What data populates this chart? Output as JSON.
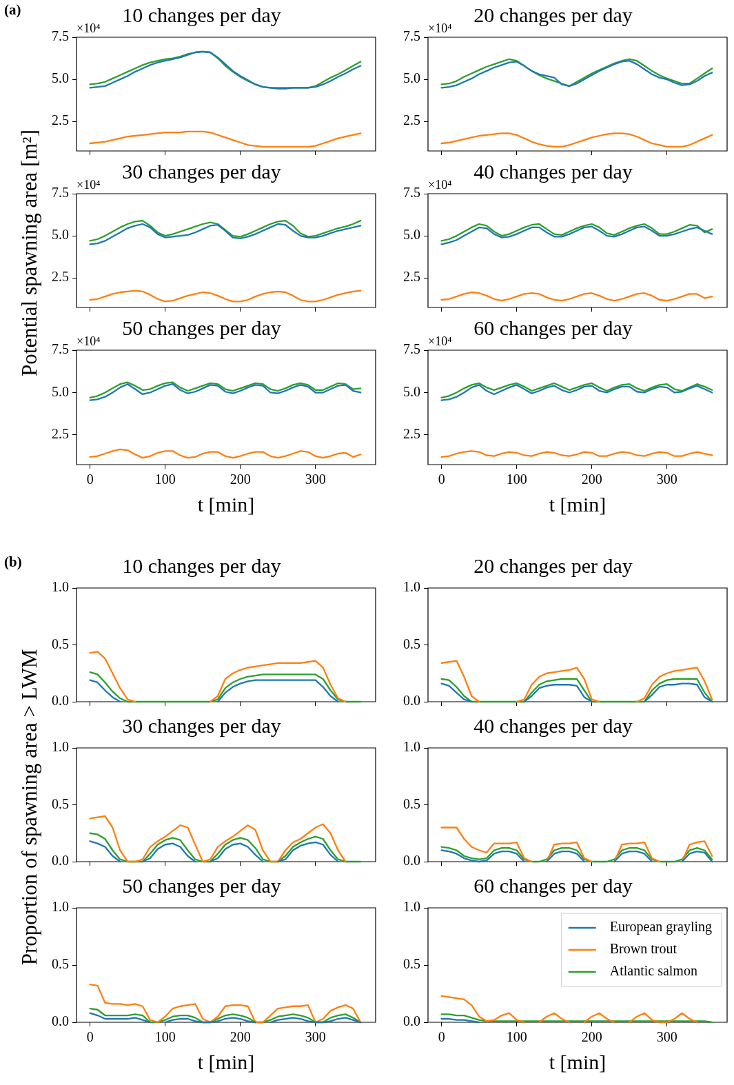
{
  "chart_data": [
    {
      "type": "line",
      "title": "10 changes per day",
      "annotations": [
        "(a)",
        "×10⁴"
      ],
      "tick_labels": "y",
      "x": [
        0,
        10,
        20,
        30,
        40,
        50,
        60,
        70,
        80,
        90,
        100,
        110,
        120,
        130,
        140,
        150,
        160,
        170,
        180,
        190,
        200,
        210,
        220,
        230,
        240,
        250,
        260,
        270,
        280,
        290,
        300,
        310,
        320,
        330,
        340,
        350,
        360
      ],
      "xlim": [
        -18,
        380
      ],
      "xticks": [
        0,
        100,
        200,
        300
      ],
      "ylim": [
        0.75,
        7.5
      ],
      "yticks": [
        2.5,
        {
          "value": 5,
          "label": "5.0"
        },
        7.5
      ],
      "series": [
        {
          "color": "#1f77b4",
          "values": [
            4.5,
            4.55,
            4.6,
            4.8,
            5,
            5.2,
            5.45,
            5.65,
            5.85,
            6,
            6.1,
            6.2,
            6.3,
            6.45,
            6.6,
            6.65,
            6.6,
            6.3,
            5.9,
            5.5,
            5.2,
            4.95,
            4.7,
            4.55,
            4.5,
            4.45,
            4.45,
            4.5,
            4.5,
            4.5,
            4.55,
            4.7,
            4.9,
            5.15,
            5.35,
            5.6,
            5.8
          ]
        },
        {
          "color": "#ff7f0e",
          "values": [
            1.2,
            1.25,
            1.3,
            1.4,
            1.5,
            1.6,
            1.65,
            1.7,
            1.75,
            1.8,
            1.85,
            1.85,
            1.85,
            1.9,
            1.9,
            1.9,
            1.85,
            1.7,
            1.55,
            1.4,
            1.25,
            1.1,
            1.05,
            1,
            1,
            1,
            1,
            1,
            1,
            1,
            1.05,
            1.2,
            1.35,
            1.5,
            1.6,
            1.7,
            1.8
          ]
        },
        {
          "color": "#2ca02c",
          "values": [
            4.7,
            4.75,
            4.85,
            5.05,
            5.25,
            5.45,
            5.65,
            5.85,
            6,
            6.1,
            6.2,
            6.25,
            6.35,
            6.5,
            6.6,
            6.65,
            6.6,
            6.25,
            5.8,
            5.45,
            5.15,
            4.9,
            4.7,
            4.55,
            4.5,
            4.5,
            4.5,
            4.5,
            4.5,
            4.5,
            4.6,
            4.85,
            5.1,
            5.3,
            5.55,
            5.8,
            6.05
          ]
        }
      ]
    },
    {
      "type": "line",
      "title": "20 changes per day",
      "annotations": [
        "×10⁴"
      ],
      "tick_labels": "y",
      "x": [
        0,
        10,
        20,
        30,
        40,
        50,
        60,
        70,
        80,
        90,
        100,
        110,
        120,
        130,
        140,
        150,
        160,
        170,
        180,
        190,
        200,
        210,
        220,
        230,
        240,
        250,
        260,
        270,
        280,
        290,
        300,
        310,
        320,
        330,
        340,
        350,
        360
      ],
      "xlim": [
        -18,
        380
      ],
      "xticks": [
        0,
        100,
        200,
        300
      ],
      "ylim": [
        0.75,
        7.5
      ],
      "yticks": [
        2.5,
        {
          "value": 5,
          "label": "5.0"
        },
        7.5
      ],
      "series": [
        {
          "color": "#1f77b4",
          "values": [
            4.5,
            4.55,
            4.65,
            4.85,
            5.05,
            5.3,
            5.5,
            5.7,
            5.85,
            6,
            6.05,
            5.8,
            5.5,
            5.3,
            5.2,
            5.1,
            4.7,
            4.6,
            4.75,
            5,
            5.25,
            5.5,
            5.7,
            5.9,
            6.05,
            6.1,
            5.9,
            5.6,
            5.3,
            5.1,
            5,
            4.8,
            4.65,
            4.7,
            4.9,
            5.2,
            5.4
          ]
        },
        {
          "color": "#ff7f0e",
          "values": [
            1.2,
            1.25,
            1.35,
            1.45,
            1.55,
            1.65,
            1.7,
            1.75,
            1.8,
            1.8,
            1.7,
            1.5,
            1.3,
            1.15,
            1.05,
            1,
            1,
            1.1,
            1.25,
            1.4,
            1.55,
            1.65,
            1.75,
            1.8,
            1.8,
            1.75,
            1.6,
            1.4,
            1.2,
            1.1,
            1,
            1,
            1,
            1.1,
            1.3,
            1.5,
            1.7
          ]
        },
        {
          "color": "#2ca02c",
          "values": [
            4.7,
            4.75,
            4.9,
            5.15,
            5.35,
            5.55,
            5.75,
            5.9,
            6.05,
            6.2,
            6.1,
            5.8,
            5.5,
            5.25,
            5.05,
            4.9,
            4.75,
            4.6,
            4.85,
            5.1,
            5.35,
            5.55,
            5.75,
            5.95,
            6.1,
            6.2,
            6.1,
            5.8,
            5.5,
            5.25,
            5.05,
            4.9,
            4.75,
            4.75,
            5.05,
            5.35,
            5.65
          ]
        }
      ]
    },
    {
      "type": "line",
      "title": "30 changes per day",
      "ylabel": "Potential spawning area [m²]",
      "annotations": [
        "×10⁴"
      ],
      "tick_labels": "y",
      "x": [
        0,
        10,
        20,
        30,
        40,
        50,
        60,
        70,
        80,
        90,
        100,
        110,
        120,
        130,
        140,
        150,
        160,
        170,
        180,
        190,
        200,
        210,
        220,
        230,
        240,
        250,
        260,
        270,
        280,
        290,
        300,
        310,
        320,
        330,
        340,
        350,
        360
      ],
      "xlim": [
        -18,
        380
      ],
      "xticks": [
        0,
        100,
        200,
        300
      ],
      "ylim": [
        0.75,
        7.5
      ],
      "yticks": [
        2.5,
        {
          "value": 5,
          "label": "5.0"
        },
        7.5
      ],
      "series": [
        {
          "color": "#1f77b4",
          "values": [
            4.5,
            4.55,
            4.7,
            4.95,
            5.2,
            5.45,
            5.6,
            5.7,
            5.5,
            5.1,
            4.9,
            4.95,
            5,
            5.05,
            5.2,
            5.4,
            5.6,
            5.65,
            5.3,
            4.9,
            4.85,
            4.95,
            5.1,
            5.3,
            5.5,
            5.7,
            5.65,
            5.3,
            5,
            4.9,
            4.9,
            5,
            5.15,
            5.3,
            5.4,
            5.5,
            5.6
          ]
        },
        {
          "color": "#ff7f0e",
          "values": [
            1.2,
            1.25,
            1.4,
            1.55,
            1.65,
            1.7,
            1.75,
            1.7,
            1.5,
            1.25,
            1.1,
            1.15,
            1.3,
            1.45,
            1.55,
            1.65,
            1.6,
            1.45,
            1.25,
            1.1,
            1.1,
            1.2,
            1.4,
            1.55,
            1.65,
            1.7,
            1.65,
            1.45,
            1.2,
            1.1,
            1.1,
            1.2,
            1.35,
            1.5,
            1.6,
            1.7,
            1.75
          ]
        },
        {
          "color": "#2ca02c",
          "values": [
            4.7,
            4.8,
            5,
            5.25,
            5.5,
            5.7,
            5.85,
            5.9,
            5.6,
            5.2,
            5,
            5.1,
            5.25,
            5.4,
            5.55,
            5.7,
            5.8,
            5.7,
            5.35,
            5,
            4.95,
            5.1,
            5.3,
            5.5,
            5.7,
            5.85,
            5.9,
            5.6,
            5.15,
            4.95,
            5,
            5.15,
            5.3,
            5.45,
            5.55,
            5.7,
            5.9
          ]
        }
      ]
    },
    {
      "type": "line",
      "title": "40 changes per day",
      "annotations": [
        "×10⁴"
      ],
      "tick_labels": "y",
      "x": [
        0,
        10,
        20,
        30,
        40,
        50,
        60,
        70,
        80,
        90,
        100,
        110,
        120,
        130,
        140,
        150,
        160,
        170,
        180,
        190,
        200,
        210,
        220,
        230,
        240,
        250,
        260,
        270,
        280,
        290,
        300,
        310,
        320,
        330,
        340,
        350,
        360
      ],
      "xlim": [
        -18,
        380
      ],
      "xticks": [
        0,
        100,
        200,
        300
      ],
      "ylim": [
        0.75,
        7.5
      ],
      "yticks": [
        2.5,
        {
          "value": 5,
          "label": "5.0"
        },
        7.5
      ],
      "series": [
        {
          "color": "#1f77b4",
          "values": [
            4.5,
            4.6,
            4.75,
            5,
            5.25,
            5.5,
            5.45,
            5.1,
            4.9,
            4.95,
            5.1,
            5.3,
            5.5,
            5.5,
            5.2,
            4.95,
            4.95,
            5.1,
            5.3,
            5.5,
            5.55,
            5.3,
            5,
            4.95,
            5.1,
            5.3,
            5.5,
            5.55,
            5.3,
            5,
            5,
            5.1,
            5.25,
            5.4,
            5.5,
            5.3,
            5.1
          ]
        },
        {
          "color": "#ff7f0e",
          "values": [
            1.2,
            1.25,
            1.4,
            1.55,
            1.65,
            1.6,
            1.45,
            1.25,
            1.15,
            1.25,
            1.4,
            1.55,
            1.6,
            1.55,
            1.35,
            1.2,
            1.15,
            1.25,
            1.4,
            1.55,
            1.6,
            1.45,
            1.25,
            1.15,
            1.25,
            1.4,
            1.55,
            1.6,
            1.45,
            1.2,
            1.15,
            1.25,
            1.4,
            1.55,
            1.55,
            1.3,
            1.4
          ]
        },
        {
          "color": "#2ca02c",
          "values": [
            4.7,
            4.8,
            5,
            5.25,
            5.5,
            5.7,
            5.6,
            5.25,
            5,
            5.1,
            5.3,
            5.5,
            5.65,
            5.7,
            5.4,
            5.1,
            5.05,
            5.25,
            5.45,
            5.6,
            5.7,
            5.5,
            5.15,
            5.05,
            5.25,
            5.45,
            5.6,
            5.7,
            5.45,
            5.1,
            5.1,
            5.25,
            5.45,
            5.65,
            5.6,
            5.2,
            5.4
          ]
        }
      ]
    },
    {
      "type": "line",
      "title": "50 changes per day",
      "xlabel": "t [min]",
      "annotations": [
        "×10⁴"
      ],
      "x": [
        0,
        10,
        20,
        30,
        40,
        50,
        60,
        70,
        80,
        90,
        100,
        110,
        120,
        130,
        140,
        150,
        160,
        170,
        180,
        190,
        200,
        210,
        220,
        230,
        240,
        250,
        260,
        270,
        280,
        290,
        300,
        310,
        320,
        330,
        340,
        350,
        360
      ],
      "xlim": [
        -18,
        380
      ],
      "xticks": [
        0,
        100,
        200,
        300
      ],
      "ylim": [
        0.75,
        7.5
      ],
      "yticks": [
        2.5,
        {
          "value": 5,
          "label": "5.0"
        },
        7.5
      ],
      "series": [
        {
          "color": "#1f77b4",
          "values": [
            4.55,
            4.6,
            4.75,
            5,
            5.3,
            5.5,
            5.2,
            4.9,
            5,
            5.2,
            5.4,
            5.5,
            5.15,
            4.95,
            5.05,
            5.25,
            5.45,
            5.4,
            5.05,
            4.95,
            5.1,
            5.3,
            5.45,
            5.4,
            5,
            4.95,
            5.1,
            5.3,
            5.45,
            5.35,
            5,
            5,
            5.2,
            5.4,
            5.45,
            5.1,
            5
          ]
        },
        {
          "color": "#ff7f0e",
          "values": [
            1.2,
            1.25,
            1.4,
            1.55,
            1.65,
            1.6,
            1.35,
            1.15,
            1.25,
            1.45,
            1.55,
            1.55,
            1.3,
            1.15,
            1.2,
            1.4,
            1.5,
            1.5,
            1.25,
            1.15,
            1.25,
            1.4,
            1.5,
            1.5,
            1.25,
            1.15,
            1.25,
            1.4,
            1.55,
            1.5,
            1.25,
            1.15,
            1.25,
            1.4,
            1.45,
            1.2,
            1.35
          ]
        },
        {
          "color": "#2ca02c",
          "values": [
            4.7,
            4.8,
            5,
            5.25,
            5.5,
            5.6,
            5.4,
            5.15,
            5.2,
            5.4,
            5.55,
            5.6,
            5.3,
            5.1,
            5.25,
            5.4,
            5.55,
            5.5,
            5.2,
            5.1,
            5.25,
            5.4,
            5.55,
            5.5,
            5.2,
            5.1,
            5.25,
            5.45,
            5.55,
            5.45,
            5.15,
            5.15,
            5.35,
            5.55,
            5.5,
            5.2,
            5.25
          ]
        }
      ]
    },
    {
      "type": "line",
      "title": "60 changes per day",
      "xlabel": "t [min]",
      "annotations": [
        "×10⁴"
      ],
      "x": [
        0,
        10,
        20,
        30,
        40,
        50,
        60,
        70,
        80,
        90,
        100,
        110,
        120,
        130,
        140,
        150,
        160,
        170,
        180,
        190,
        200,
        210,
        220,
        230,
        240,
        250,
        260,
        270,
        280,
        290,
        300,
        310,
        320,
        330,
        340,
        350,
        360
      ],
      "xlim": [
        -18,
        380
      ],
      "xticks": [
        0,
        100,
        200,
        300
      ],
      "ylim": [
        0.75,
        7.5
      ],
      "yticks": [
        2.5,
        {
          "value": 5,
          "label": "5.0"
        },
        7.5
      ],
      "series": [
        {
          "color": "#1f77b4",
          "values": [
            4.55,
            4.6,
            4.75,
            5,
            5.3,
            5.45,
            5.1,
            4.9,
            5.1,
            5.3,
            5.45,
            5.2,
            4.95,
            5.1,
            5.3,
            5.4,
            5.15,
            5,
            5.15,
            5.35,
            5.4,
            5.1,
            5,
            5.2,
            5.35,
            5.35,
            5.05,
            5,
            5.2,
            5.35,
            5.3,
            5,
            5.05,
            5.25,
            5.4,
            5.2,
            5
          ]
        },
        {
          "color": "#ff7f0e",
          "values": [
            1.2,
            1.25,
            1.4,
            1.5,
            1.55,
            1.5,
            1.3,
            1.25,
            1.4,
            1.5,
            1.45,
            1.3,
            1.25,
            1.4,
            1.5,
            1.45,
            1.3,
            1.25,
            1.35,
            1.5,
            1.45,
            1.25,
            1.25,
            1.4,
            1.5,
            1.45,
            1.3,
            1.25,
            1.4,
            1.5,
            1.45,
            1.25,
            1.25,
            1.4,
            1.5,
            1.4,
            1.3
          ]
        },
        {
          "color": "#2ca02c",
          "values": [
            4.7,
            4.8,
            5,
            5.25,
            5.45,
            5.55,
            5.3,
            5.15,
            5.3,
            5.45,
            5.55,
            5.35,
            5.1,
            5.25,
            5.4,
            5.55,
            5.35,
            5.15,
            5.3,
            5.45,
            5.55,
            5.3,
            5.1,
            5.3,
            5.45,
            5.5,
            5.25,
            5.1,
            5.3,
            5.45,
            5.5,
            5.2,
            5.1,
            5.3,
            5.5,
            5.35,
            5.15
          ]
        }
      ]
    },
    {
      "type": "line",
      "title": "10 changes per day",
      "annotations": [
        "(b)"
      ],
      "tick_labels": "y",
      "x": [
        0,
        10,
        20,
        30,
        40,
        50,
        60,
        70,
        80,
        90,
        100,
        110,
        120,
        130,
        140,
        150,
        160,
        170,
        180,
        190,
        200,
        210,
        220,
        230,
        240,
        250,
        260,
        270,
        280,
        290,
        300,
        310,
        320,
        330,
        340,
        350,
        360
      ],
      "xlim": [
        -18,
        380
      ],
      "xticks": [
        0,
        100,
        200,
        300
      ],
      "ylim": [
        0,
        1
      ],
      "yticks": [
        {
          "value": 0,
          "label": "0.0"
        },
        0.5,
        {
          "value": 1,
          "label": "1.0"
        }
      ],
      "series": [
        {
          "color": "#1f77b4",
          "values": [
            0.19,
            0.17,
            0.1,
            0.04,
            0,
            null,
            null,
            null,
            null,
            null,
            null,
            null,
            null,
            null,
            null,
            null,
            null,
            0,
            0.08,
            0.13,
            0.16,
            0.18,
            0.19,
            0.19,
            0.19,
            0.19,
            0.19,
            0.19,
            0.19,
            0.19,
            0.19,
            0.13,
            0.05,
            0,
            null,
            null,
            null
          ]
        },
        {
          "color": "#ff7f0e",
          "values": [
            0.43,
            0.44,
            0.38,
            0.25,
            0.12,
            0.02,
            0,
            null,
            null,
            null,
            null,
            null,
            null,
            null,
            null,
            null,
            0,
            0.05,
            0.2,
            0.25,
            0.28,
            0.3,
            0.31,
            0.32,
            0.33,
            0.34,
            0.34,
            0.34,
            0.34,
            0.35,
            0.36,
            0.3,
            0.15,
            0.03,
            0,
            null,
            null
          ]
        },
        {
          "color": "#2ca02c",
          "values": [
            0.26,
            0.24,
            0.17,
            0.09,
            0.03,
            0,
            0,
            0,
            0,
            0,
            0,
            0,
            0,
            0,
            0,
            0,
            0,
            0.02,
            0.12,
            0.17,
            0.2,
            0.22,
            0.23,
            0.24,
            0.24,
            0.24,
            0.24,
            0.24,
            0.24,
            0.24,
            0.24,
            0.2,
            0.1,
            0.02,
            0,
            0,
            0
          ]
        }
      ]
    },
    {
      "type": "line",
      "title": "20 changes per day",
      "tick_labels": "y",
      "x": [
        0,
        10,
        20,
        30,
        40,
        50,
        60,
        70,
        80,
        90,
        100,
        110,
        120,
        130,
        140,
        150,
        160,
        170,
        180,
        190,
        200,
        210,
        220,
        230,
        240,
        250,
        260,
        270,
        280,
        290,
        300,
        310,
        320,
        330,
        340,
        350,
        360
      ],
      "xlim": [
        -18,
        380
      ],
      "xticks": [
        0,
        100,
        200,
        300
      ],
      "ylim": [
        0,
        1
      ],
      "yticks": [
        {
          "value": 0,
          "label": "0.0"
        },
        0.5,
        {
          "value": 1,
          "label": "1.0"
        }
      ],
      "series": [
        {
          "color": "#1f77b4",
          "values": [
            0.16,
            0.14,
            0.08,
            0.02,
            0,
            null,
            null,
            null,
            null,
            null,
            null,
            0,
            0.05,
            0.12,
            0.14,
            0.15,
            0.15,
            0.15,
            0.14,
            0.04,
            0,
            null,
            null,
            null,
            null,
            null,
            null,
            0,
            0.06,
            0.13,
            0.15,
            0.15,
            0.16,
            0.16,
            0.15,
            0.04,
            0
          ]
        },
        {
          "color": "#ff7f0e",
          "values": [
            0.34,
            0.35,
            0.36,
            0.22,
            0.05,
            0,
            null,
            null,
            null,
            null,
            0,
            0.02,
            0.15,
            0.22,
            0.25,
            0.26,
            0.27,
            0.28,
            0.3,
            0.2,
            0.02,
            0,
            null,
            null,
            null,
            null,
            0,
            0.03,
            0.15,
            0.22,
            0.25,
            0.27,
            0.28,
            0.29,
            0.3,
            0.18,
            0.02
          ]
        },
        {
          "color": "#2ca02c",
          "values": [
            0.2,
            0.19,
            0.13,
            0.05,
            0,
            0,
            0,
            0,
            0,
            0,
            0,
            0,
            0.08,
            0.15,
            0.18,
            0.19,
            0.2,
            0.2,
            0.2,
            0.1,
            0,
            0,
            0,
            0,
            0,
            0,
            0,
            0,
            0.1,
            0.16,
            0.19,
            0.2,
            0.2,
            0.2,
            0.2,
            0.08,
            0
          ]
        }
      ]
    },
    {
      "type": "line",
      "title": "30 changes per day",
      "ylabel": "Proportion of spawning area > LWM",
      "tick_labels": "y",
      "x": [
        0,
        10,
        20,
        30,
        40,
        50,
        60,
        70,
        80,
        90,
        100,
        110,
        120,
        130,
        140,
        150,
        160,
        170,
        180,
        190,
        200,
        210,
        220,
        230,
        240,
        250,
        260,
        270,
        280,
        290,
        300,
        310,
        320,
        330,
        340,
        350,
        360
      ],
      "xlim": [
        -18,
        380
      ],
      "xticks": [
        0,
        100,
        200,
        300
      ],
      "ylim": [
        0,
        1
      ],
      "yticks": [
        {
          "value": 0,
          "label": "0.0"
        },
        0.5,
        {
          "value": 1,
          "label": "1.0"
        }
      ],
      "series": [
        {
          "color": "#1f77b4",
          "values": [
            0.18,
            0.16,
            0.13,
            0.05,
            0,
            null,
            null,
            0,
            0.03,
            0.11,
            0.15,
            0.16,
            0.13,
            0.05,
            0,
            null,
            0,
            0.03,
            0.11,
            0.15,
            0.16,
            0.13,
            0.06,
            0,
            null,
            0,
            0.02,
            0.1,
            0.14,
            0.16,
            0.17,
            0.15,
            0.06,
            0,
            null,
            null,
            null
          ]
        },
        {
          "color": "#ff7f0e",
          "values": [
            0.38,
            0.39,
            0.4,
            0.3,
            0.1,
            0,
            0,
            0.02,
            0.13,
            0.18,
            0.22,
            0.27,
            0.32,
            0.3,
            0.15,
            0,
            0.02,
            0.13,
            0.18,
            0.22,
            0.27,
            0.32,
            0.28,
            0.1,
            0,
            0,
            0.1,
            0.17,
            0.2,
            0.25,
            0.3,
            0.33,
            0.25,
            0.1,
            0,
            null,
            null
          ]
        },
        {
          "color": "#2ca02c",
          "values": [
            0.25,
            0.24,
            0.2,
            0.1,
            0.02,
            0,
            0,
            0,
            0.07,
            0.15,
            0.19,
            0.21,
            0.19,
            0.1,
            0.02,
            0,
            0,
            0.07,
            0.15,
            0.19,
            0.21,
            0.19,
            0.12,
            0.02,
            0,
            0,
            0.05,
            0.13,
            0.17,
            0.2,
            0.22,
            0.2,
            0.1,
            0.02,
            0,
            0,
            0
          ]
        }
      ]
    },
    {
      "type": "line",
      "title": "40 changes per day",
      "tick_labels": "y",
      "x": [
        0,
        10,
        20,
        30,
        40,
        50,
        60,
        70,
        80,
        90,
        100,
        110,
        120,
        130,
        140,
        150,
        160,
        170,
        180,
        190,
        200,
        210,
        220,
        230,
        240,
        250,
        260,
        270,
        280,
        290,
        300,
        310,
        320,
        330,
        340,
        350,
        360
      ],
      "xlim": [
        -18,
        380
      ],
      "xticks": [
        0,
        100,
        200,
        300
      ],
      "ylim": [
        0,
        1
      ],
      "yticks": [
        {
          "value": 0,
          "label": "0.0"
        },
        0.5,
        {
          "value": 1,
          "label": "1.0"
        }
      ],
      "series": [
        {
          "color": "#1f77b4",
          "values": [
            0.1,
            0.09,
            0.07,
            0.03,
            0.01,
            0,
            0.01,
            0.07,
            0.09,
            0.09,
            0.07,
            0,
            null,
            null,
            0,
            0.07,
            0.09,
            0.09,
            0.07,
            0,
            null,
            null,
            null,
            0,
            0.07,
            0.09,
            0.09,
            0.07,
            0,
            null,
            null,
            null,
            0,
            0.07,
            0.09,
            0.08,
            0
          ]
        },
        {
          "color": "#ff7f0e",
          "values": [
            0.3,
            0.3,
            0.3,
            0.2,
            0.13,
            0.1,
            0.08,
            0.16,
            0.16,
            0.16,
            0.17,
            0.03,
            0,
            null,
            0,
            0.15,
            0.16,
            0.16,
            0.17,
            0.03,
            0,
            null,
            null,
            0,
            0.15,
            0.16,
            0.16,
            0.17,
            0.03,
            0,
            null,
            null,
            0,
            0.15,
            0.17,
            0.18,
            0.05
          ]
        },
        {
          "color": "#2ca02c",
          "values": [
            0.13,
            0.12,
            0.1,
            0.05,
            0.03,
            0.02,
            0.03,
            0.1,
            0.12,
            0.12,
            0.1,
            0.02,
            0,
            0,
            0.02,
            0.1,
            0.12,
            0.12,
            0.1,
            0.02,
            0,
            0,
            0,
            0.02,
            0.1,
            0.12,
            0.12,
            0.1,
            0.02,
            0,
            0,
            0,
            0.02,
            0.1,
            0.12,
            0.1,
            0.02
          ]
        }
      ]
    },
    {
      "type": "line",
      "title": "50 changes per day",
      "xlabel": "t [min]",
      "x": [
        0,
        10,
        20,
        30,
        40,
        50,
        60,
        70,
        80,
        90,
        100,
        110,
        120,
        130,
        140,
        150,
        160,
        170,
        180,
        190,
        200,
        210,
        220,
        230,
        240,
        250,
        260,
        270,
        280,
        290,
        300,
        310,
        320,
        330,
        340,
        350,
        360
      ],
      "xlim": [
        -18,
        380
      ],
      "xticks": [
        0,
        100,
        200,
        300
      ],
      "ylim": [
        0,
        1
      ],
      "yticks": [
        {
          "value": 0,
          "label": "0.0"
        },
        0.5,
        {
          "value": 1,
          "label": "1.0"
        }
      ],
      "series": [
        {
          "color": "#1f77b4",
          "values": [
            0.08,
            0.06,
            0.03,
            0.03,
            0.03,
            0.03,
            0.04,
            0.02,
            0,
            null,
            0,
            0.02,
            0.03,
            0.03,
            0.01,
            0,
            0,
            0.01,
            0.03,
            0.04,
            0.03,
            0.01,
            0,
            null,
            0,
            0.02,
            0.03,
            0.04,
            0.03,
            0.01,
            0,
            0,
            0.01,
            0.03,
            0.04,
            0.02,
            0
          ]
        },
        {
          "color": "#ff7f0e",
          "values": [
            0.33,
            0.32,
            0.17,
            0.16,
            0.16,
            0.15,
            0.16,
            0.14,
            0.02,
            0,
            0.05,
            0.12,
            0.14,
            0.15,
            0.16,
            0.03,
            0,
            0.05,
            0.14,
            0.15,
            0.15,
            0.14,
            0,
            0,
            0.06,
            0.12,
            0.13,
            0.14,
            0.14,
            0.15,
            0,
            0.03,
            0.1,
            0.13,
            0.15,
            0.12,
            0
          ]
        },
        {
          "color": "#2ca02c",
          "values": [
            0.12,
            0.11,
            0.06,
            0.06,
            0.06,
            0.06,
            0.07,
            0.06,
            0,
            0,
            0.02,
            0.05,
            0.06,
            0.06,
            0.04,
            0,
            0,
            0.03,
            0.06,
            0.07,
            0.06,
            0.04,
            0,
            0,
            0.02,
            0.05,
            0.06,
            0.07,
            0.06,
            0.04,
            0,
            0,
            0.04,
            0.06,
            0.07,
            0.04,
            0
          ]
        }
      ]
    },
    {
      "type": "line",
      "title": "60 changes per day",
      "xlabel": "t [min]",
      "legend": "top right",
      "x": [
        0,
        10,
        20,
        30,
        40,
        50,
        60,
        70,
        80,
        90,
        100,
        110,
        120,
        130,
        140,
        150,
        160,
        170,
        180,
        190,
        200,
        210,
        220,
        230,
        240,
        250,
        260,
        270,
        280,
        290,
        300,
        310,
        320,
        330,
        340,
        350,
        360
      ],
      "xlim": [
        -18,
        380
      ],
      "xticks": [
        0,
        100,
        200,
        300
      ],
      "ylim": [
        0,
        1
      ],
      "yticks": [
        {
          "value": 0,
          "label": "0.0"
        },
        0.5,
        {
          "value": 1,
          "label": "1.0"
        }
      ],
      "series": [
        {
          "name": "European grayling",
          "color": "#1f77b4",
          "values": [
            0.03,
            0.03,
            0.02,
            0.02,
            0.01,
            0,
            null,
            null,
            null,
            null,
            null,
            null,
            null,
            null,
            null,
            null,
            null,
            null,
            null,
            null,
            null,
            null,
            null,
            null,
            null,
            null,
            null,
            null,
            null,
            null,
            null,
            null,
            null,
            null,
            null,
            null,
            null
          ]
        },
        {
          "name": "Brown trout",
          "color": "#ff7f0e",
          "values": [
            0.23,
            0.22,
            0.21,
            0.2,
            0.15,
            0.05,
            0.01,
            0.02,
            0.06,
            0.08,
            0.02,
            0,
            null,
            0,
            0.05,
            0.08,
            0.03,
            0,
            null,
            0,
            0.05,
            0.08,
            0.03,
            0,
            null,
            0,
            0.05,
            0.08,
            0.02,
            0,
            0,
            0.03,
            0.08,
            0.03,
            0,
            null,
            null
          ]
        },
        {
          "name": "Atlantic salmon",
          "color": "#2ca02c",
          "values": [
            0.07,
            0.07,
            0.06,
            0.06,
            0.04,
            0.02,
            0.01,
            0.01,
            0.01,
            0.01,
            0.01,
            0.01,
            0.01,
            0.01,
            0.01,
            0.01,
            0.01,
            0.01,
            0.01,
            0.01,
            0.01,
            0.01,
            0.01,
            0.01,
            0.01,
            0.01,
            0.01,
            0.01,
            0.01,
            0.01,
            0.01,
            0.01,
            0.01,
            0.01,
            0.01,
            0.01,
            0
          ]
        }
      ]
    }
  ]
}
